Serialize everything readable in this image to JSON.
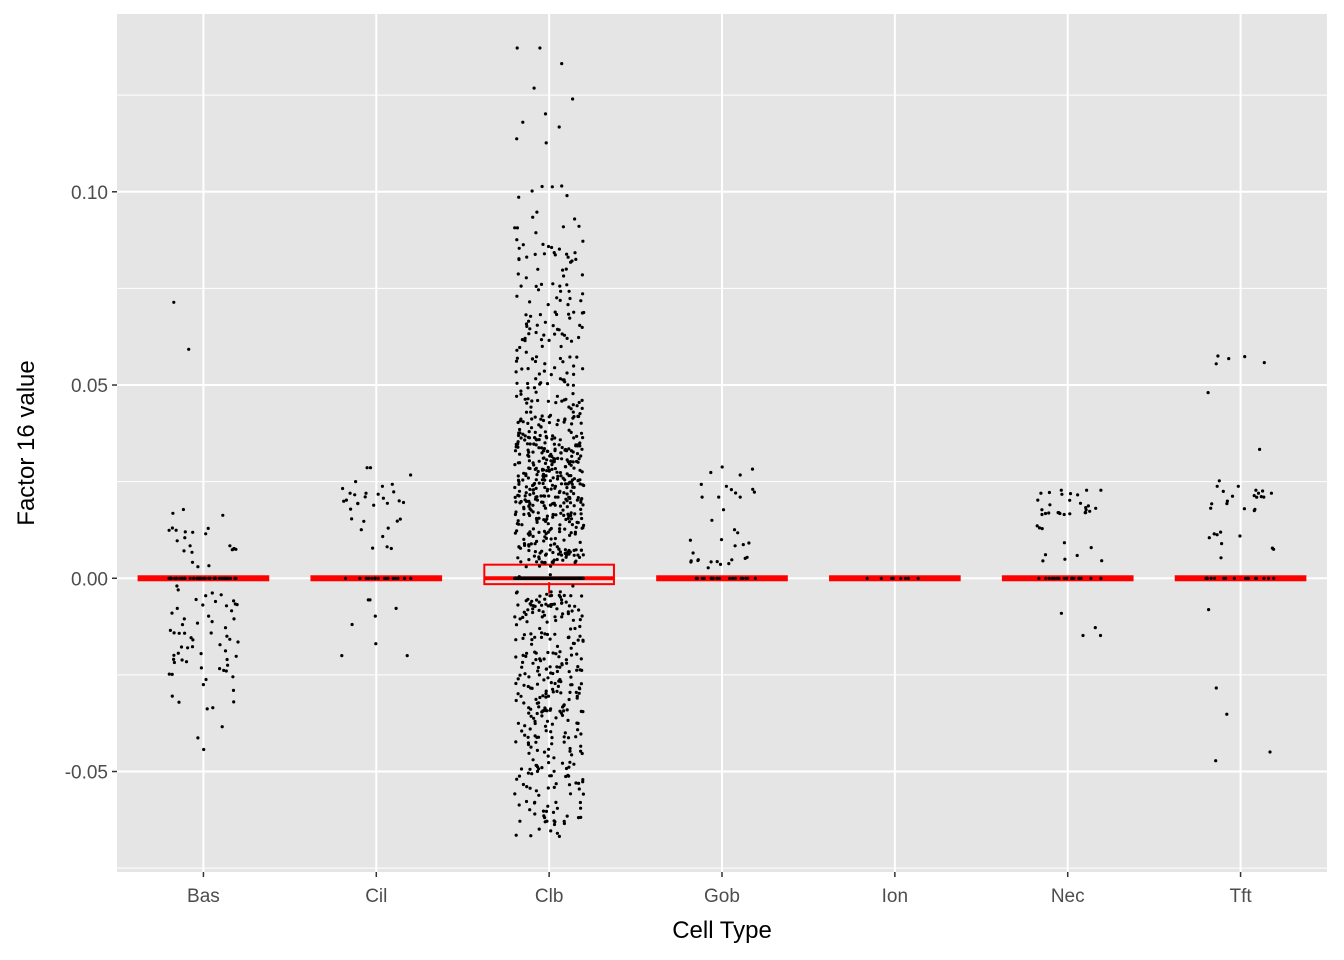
{
  "chart_data": {
    "type": "boxplot-jitter",
    "xlabel": "Cell Type",
    "ylabel": "Factor 16 value",
    "categories": [
      "Bas",
      "Cil",
      "Clb",
      "Gob",
      "Ion",
      "Nec",
      "Tft"
    ],
    "ylim": [
      -0.076,
      0.146
    ],
    "yticks": [
      -0.05,
      0.0,
      0.05,
      0.1
    ],
    "ytick_labels": [
      "-0.05",
      "0.00",
      "0.05",
      "0.10"
    ],
    "grid": true,
    "legend": "none",
    "boxplots": [
      {
        "category": "Bas",
        "q1": 0.0,
        "median": 0.0,
        "q3": 0.0,
        "whisker_low": 0.0,
        "whisker_high": 0.0
      },
      {
        "category": "Cil",
        "q1": 0.0,
        "median": 0.0,
        "q3": 0.0,
        "whisker_low": 0.0,
        "whisker_high": 0.0
      },
      {
        "category": "Clb",
        "q1": -0.001,
        "median": 0.0,
        "q3": 0.003,
        "whisker_low": -0.004,
        "whisker_high": 0.003
      },
      {
        "category": "Gob",
        "q1": 0.0,
        "median": 0.0,
        "q3": 0.0,
        "whisker_low": 0.0,
        "whisker_high": 0.0
      },
      {
        "category": "Ion",
        "q1": 0.0,
        "median": 0.0,
        "q3": 0.0,
        "whisker_low": 0.0,
        "whisker_high": 0.0
      },
      {
        "category": "Nec",
        "q1": 0.0,
        "median": 0.0,
        "q3": 0.0,
        "whisker_low": 0.0,
        "whisker_high": 0.0
      },
      {
        "category": "Tft",
        "q1": 0.0,
        "median": 0.0,
        "q3": 0.0,
        "whisker_low": 0.0,
        "whisker_high": 0.0
      }
    ],
    "points": [
      {
        "category": "Bas",
        "values": [
          0.0714,
          0.0178,
          0.0168,
          0.0163,
          0.0129,
          0.0124,
          0.012,
          0.0119,
          0.0105,
          0.0097,
          0.0084,
          0.0077,
          0.0076,
          0.0075,
          0.0074,
          0.003,
          -0.002,
          -0.003,
          -0.0038,
          -0.0045,
          -0.0055,
          -0.006,
          -0.0068,
          -0.0078,
          -0.009,
          -0.0098,
          -0.0105,
          -0.0112,
          -0.012,
          -0.0128,
          -0.0135,
          -0.0142,
          -0.015,
          -0.0158,
          -0.0165,
          -0.0172,
          -0.018,
          -0.0188,
          -0.0195,
          -0.0202,
          -0.021,
          -0.0218,
          -0.0225,
          -0.0232,
          -0.024,
          -0.0248,
          -0.0255,
          -0.0262,
          -0.0275,
          -0.029,
          -0.0305,
          -0.032,
          -0.0335,
          -0.0384,
          -0.0413,
          -0.0443
        ],
        "n": 130
      },
      {
        "category": "Cil",
        "values": [
          0.0286,
          0.0238,
          0.022,
          0.0216,
          0.0196,
          0.0194,
          0.0148,
          0.0078,
          -0.0056,
          -0.0078,
          -0.02
        ],
        "n": 60
      },
      {
        "category": "Clb",
        "values": [
          0.1372,
          0.1013,
          0.0876,
          0.0863,
          0.08,
          0.0756,
          0.0708,
          0.0636,
          0.0573,
          0.0463,
          0.043,
          0.0412,
          0.0385,
          0.0375,
          0.036,
          0.0345,
          0.033,
          0.0315,
          0.03,
          0.0285,
          0.027,
          0.0255,
          0.024,
          0.0225,
          0.021,
          0.0195,
          0.018,
          0.0165,
          0.015,
          0.006,
          0.005,
          0.004,
          0.003,
          -0.002,
          -0.0035,
          -0.01,
          -0.013,
          -0.016,
          -0.019,
          -0.022,
          -0.025,
          -0.028,
          -0.031,
          -0.034,
          -0.037,
          -0.04,
          -0.043,
          -0.046,
          -0.049,
          -0.052,
          -0.055,
          -0.058,
          -0.061,
          -0.063,
          -0.0668
        ],
        "n": 1400
      },
      {
        "category": "Gob",
        "values": [
          0.0288,
          0.0238,
          0.021,
          0.015,
          0.0048,
          0.0045,
          0.0042,
          0.0036,
          0.0027
        ],
        "n": 60
      },
      {
        "category": "Ion",
        "values": [],
        "n": 25
      },
      {
        "category": "Nec",
        "values": [
          0.0228,
          0.022,
          0.019,
          0.017,
          0.0165,
          0.0045,
          -0.0148
        ],
        "n": 60
      },
      {
        "category": "Tft",
        "values": [
          0.0575,
          0.0238,
          0.0228,
          0.022,
          0.021,
          0.018,
          0.0175,
          0.0105,
          0.0075,
          0.0053,
          -0.0472
        ],
        "n": 60
      }
    ],
    "colors": {
      "panel_bg": "#e5e5e5",
      "grid": "#ffffff",
      "box": "#ff0000",
      "point": "#000000"
    }
  }
}
